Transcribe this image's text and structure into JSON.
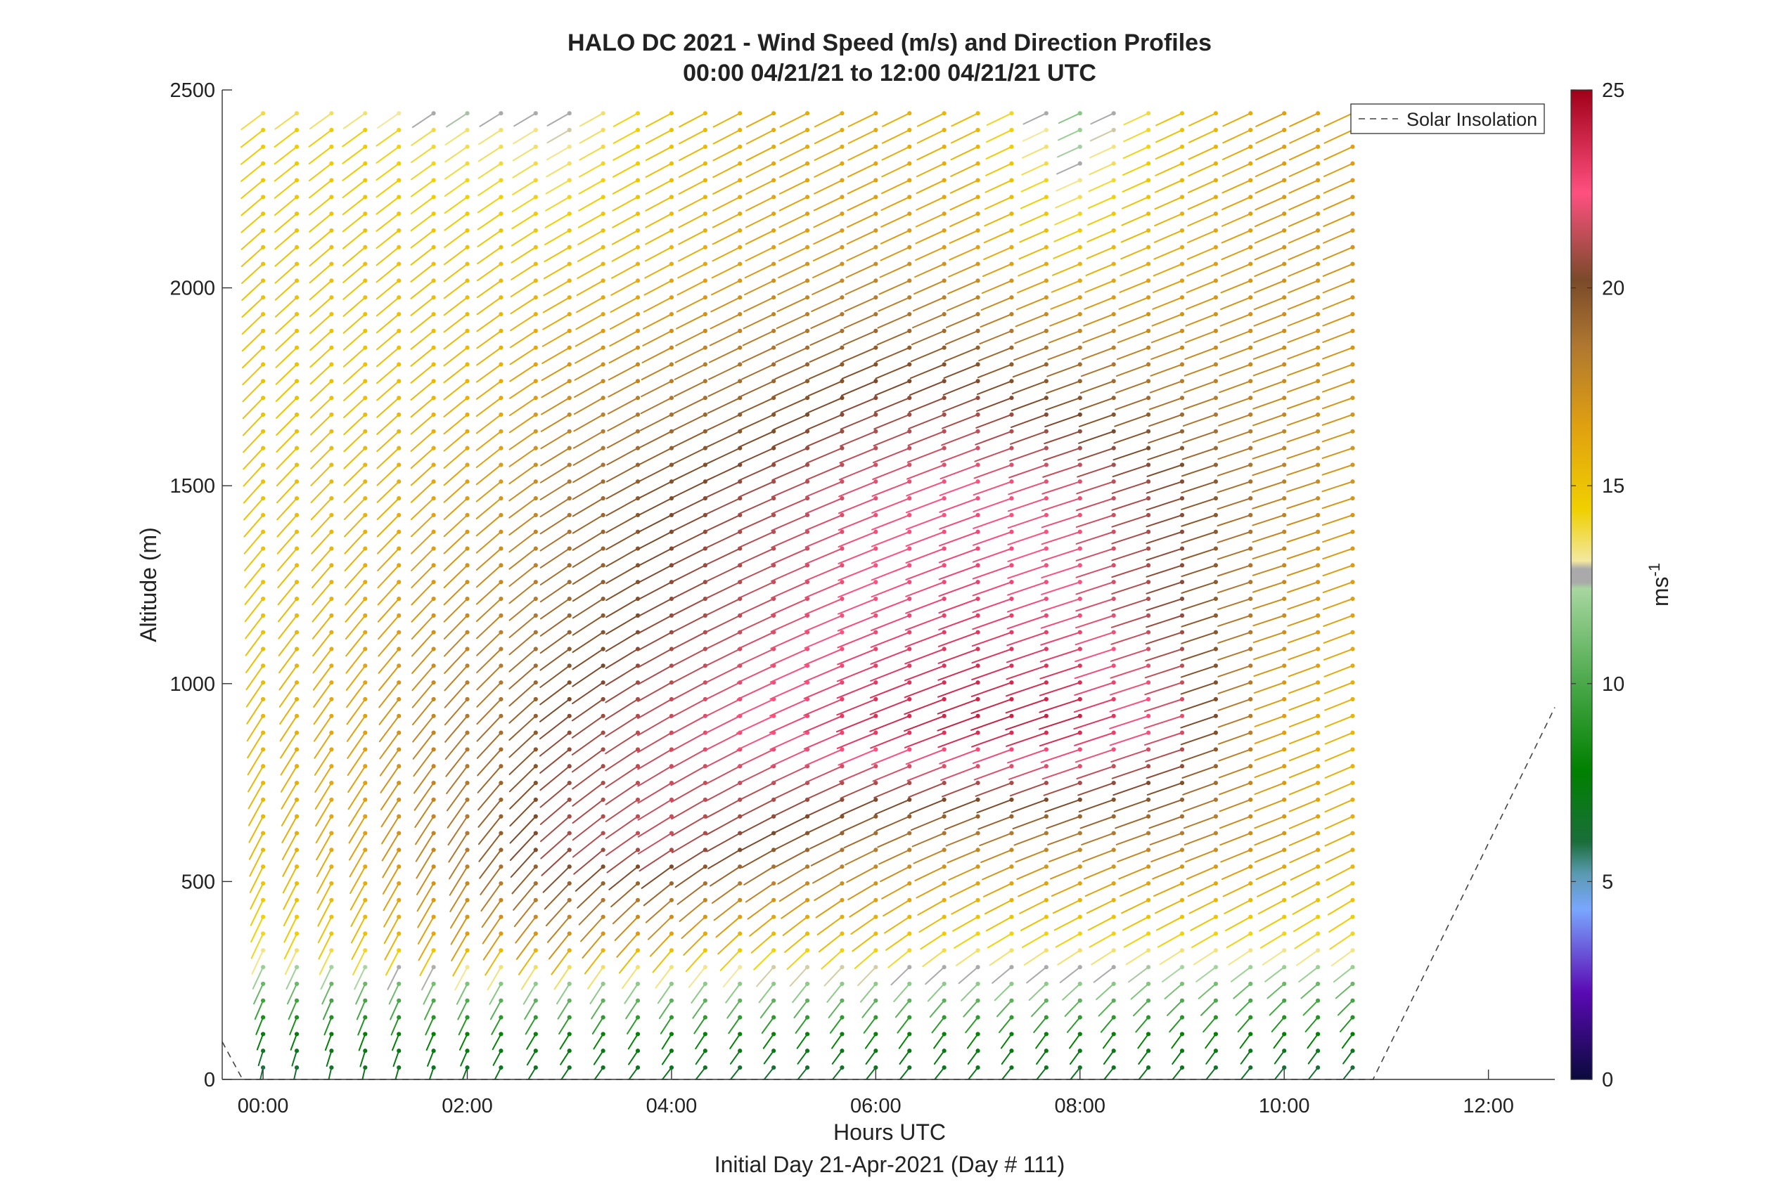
{
  "chart_data": {
    "type": "quiver",
    "title": "HALO DC 2021 - Wind Speed (m/s) and Direction Profiles",
    "subtitle": "00:00 04/21/21 to 12:00 04/21/21  UTC",
    "xlabel": "Hours UTC",
    "xlabel2": "Initial Day 21-Apr-2021 (Day # 111)",
    "ylabel": "Altitude (m)",
    "xlim": [
      -0.4,
      12.65
    ],
    "ylim": [
      0,
      2500
    ],
    "x_ticks": [
      0,
      2,
      4,
      6,
      8,
      10,
      12
    ],
    "x_tick_labels": [
      "00:00",
      "02:00",
      "04:00",
      "06:00",
      "08:00",
      "10:00",
      "12:00"
    ],
    "y_ticks": [
      0,
      500,
      1000,
      1500,
      2000,
      2500
    ],
    "y_tick_labels": [
      "0",
      "500",
      "1000",
      "1500",
      "2000",
      "2500"
    ],
    "colorbar": {
      "label": "ms",
      "label_exponent": "-1",
      "limits": [
        0,
        25
      ],
      "ticks": [
        0,
        5,
        10,
        15,
        20,
        25
      ],
      "tick_labels": [
        "0",
        "5",
        "10",
        "15",
        "20",
        "25"
      ],
      "stops": [
        {
          "v": 0,
          "color": "#0a0a3c"
        },
        {
          "v": 2.2,
          "color": "#5a0ab4"
        },
        {
          "v": 4.3,
          "color": "#7aa6ff"
        },
        {
          "v": 5.2,
          "color": "#5a9ab0"
        },
        {
          "v": 6.0,
          "color": "#1a6e3a"
        },
        {
          "v": 7.8,
          "color": "#008000"
        },
        {
          "v": 10.0,
          "color": "#4aa84a"
        },
        {
          "v": 12.4,
          "color": "#a8d6a0"
        },
        {
          "v": 12.55,
          "color": "#aaaaaa"
        },
        {
          "v": 12.9,
          "color": "#aaaaaa"
        },
        {
          "v": 13.1,
          "color": "#f2e8a0"
        },
        {
          "v": 14.4,
          "color": "#f0d000"
        },
        {
          "v": 16.5,
          "color": "#e0a010"
        },
        {
          "v": 18.5,
          "color": "#b07830"
        },
        {
          "v": 20.2,
          "color": "#7a4a2a"
        },
        {
          "v": 22.4,
          "color": "#ff5080"
        },
        {
          "v": 25,
          "color": "#a00018"
        }
      ]
    },
    "legend": {
      "entries": [
        "Solar Insolation"
      ],
      "location": "top-right"
    },
    "profile_times_h": [
      0.0,
      0.33,
      0.67,
      1.0,
      1.33,
      1.67,
      2.0,
      2.33,
      2.67,
      3.0,
      3.33,
      3.67,
      4.0,
      4.33,
      4.67,
      5.0,
      5.33,
      5.67,
      6.0,
      6.33,
      6.67,
      7.0,
      7.33,
      7.67,
      8.0,
      8.33,
      8.67,
      9.0,
      9.33,
      9.67,
      10.0,
      10.33,
      10.67
    ],
    "altitude_levels_m": {
      "start": 30,
      "end": 2470,
      "step": 42.3
    },
    "wind_speed_field_ms": {
      "grid_times_h": [
        0,
        1,
        2,
        2.5,
        3,
        4,
        5,
        6,
        7,
        8,
        9,
        10,
        10.67
      ],
      "grid_altitudes_m": [
        0,
        100,
        250,
        350,
        600,
        900,
        1200,
        1500,
        1800,
        2100,
        2400,
        2500
      ],
      "speed": [
        [
          5.5,
          6.5,
          6.5,
          6.5,
          6.5,
          6.5,
          5.5,
          6.5,
          6.5,
          6.5,
          6.5,
          5.5,
          5.5
        ],
        [
          7.0,
          7.5,
          7.5,
          7.5,
          7.5,
          7.5,
          7.5,
          7.5,
          7.5,
          7.5,
          7.5,
          7.5,
          7.5
        ],
        [
          11.0,
          11.0,
          11.5,
          12.0,
          12.0,
          12.0,
          12.0,
          12.0,
          12.0,
          12.0,
          11.5,
          11.0,
          11.0
        ],
        [
          14.0,
          15.0,
          16.5,
          16.5,
          17.0,
          16.0,
          15.0,
          15.0,
          14.0,
          14.0,
          14.0,
          14.0,
          14.0
        ],
        [
          15.5,
          16.5,
          18.5,
          20.0,
          21.0,
          21.5,
          20.0,
          18.5,
          18.0,
          18.0,
          18.0,
          17.0,
          16.0
        ],
        [
          15.5,
          16.5,
          18.5,
          19.0,
          20.5,
          21.5,
          22.5,
          23.5,
          24.0,
          24.0,
          22.0,
          16.5,
          15.5
        ],
        [
          15.0,
          16.0,
          17.5,
          18.0,
          19.0,
          20.5,
          21.5,
          22.5,
          23.0,
          22.5,
          20.5,
          17.5,
          16.5
        ],
        [
          15.0,
          15.5,
          16.5,
          17.0,
          18.5,
          20.0,
          21.0,
          22.0,
          22.5,
          22.0,
          20.5,
          18.0,
          17.0
        ],
        [
          15.0,
          15.0,
          15.5,
          16.0,
          17.0,
          18.0,
          19.0,
          20.0,
          20.0,
          19.0,
          18.0,
          17.5,
          17.0
        ],
        [
          15.0,
          15.0,
          15.0,
          15.0,
          15.0,
          15.5,
          16.5,
          17.0,
          16.5,
          15.0,
          16.0,
          17.0,
          17.0
        ],
        [
          14.5,
          14.5,
          13.5,
          13.5,
          13.0,
          15.0,
          16.0,
          16.0,
          15.5,
          12.0,
          15.0,
          16.5,
          16.5
        ],
        [
          13.0,
          12.0,
          11.0,
          11.5,
          12.5,
          15.0,
          16.0,
          16.0,
          15.0,
          11.0,
          15.0,
          16.5,
          16.5
        ]
      ],
      "direction_from_deg": [
        [
          190,
          190,
          200,
          210,
          215,
          220,
          220,
          220,
          220,
          220,
          220,
          220,
          220
        ],
        [
          200,
          200,
          205,
          210,
          212,
          212,
          215,
          215,
          215,
          215,
          215,
          215,
          215
        ],
        [
          205,
          205,
          207,
          210,
          212,
          215,
          218,
          220,
          225,
          228,
          230,
          230,
          230
        ],
        [
          205,
          207,
          210,
          215,
          218,
          222,
          228,
          232,
          238,
          240,
          240,
          238,
          235
        ],
        [
          207,
          210,
          212,
          220,
          228,
          238,
          242,
          245,
          248,
          250,
          250,
          248,
          245
        ],
        [
          212,
          215,
          220,
          225,
          232,
          240,
          245,
          248,
          250,
          252,
          252,
          250,
          248
        ],
        [
          218,
          220,
          225,
          228,
          235,
          242,
          245,
          248,
          250,
          252,
          252,
          252,
          250
        ],
        [
          222,
          225,
          228,
          232,
          238,
          243,
          246,
          248,
          250,
          252,
          252,
          252,
          252
        ],
        [
          225,
          228,
          232,
          235,
          240,
          243,
          245,
          247,
          248,
          250,
          250,
          250,
          250
        ],
        [
          228,
          230,
          233,
          236,
          240,
          242,
          244,
          245,
          246,
          247,
          247,
          247,
          247
        ],
        [
          232,
          234,
          236,
          238,
          240,
          242,
          243,
          244,
          244,
          245,
          245,
          245,
          245
        ],
        [
          235,
          236,
          238,
          240,
          241,
          242,
          243,
          244,
          244,
          245,
          245,
          245,
          245
        ]
      ]
    },
    "solar_insolation_line": {
      "x_h": [
        -0.4,
        -0.2,
        10.87,
        12.65
      ],
      "y_m": [
        95,
        0,
        0,
        940
      ]
    }
  }
}
